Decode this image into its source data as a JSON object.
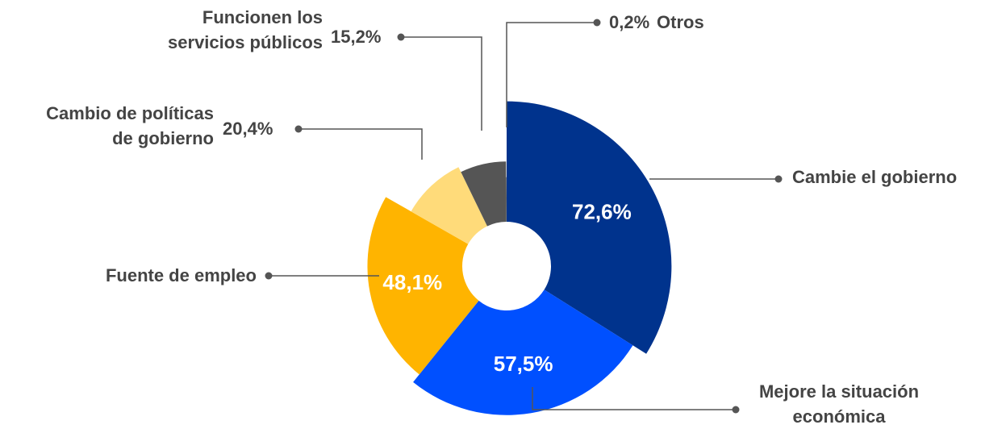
{
  "chart_data": {
    "type": "pie",
    "categories": [
      "Cambie el gobierno",
      "Mejore la situación económica",
      "Fuente de empleo",
      "Cambio de políticas de gobierno",
      "Funcionen los servicios públicos",
      "Otros"
    ],
    "values": [
      72.6,
      57.5,
      48.1,
      20.4,
      15.2,
      0.2
    ],
    "value_labels": [
      "72,6%",
      "57,5%",
      "48,1%",
      "20,4%",
      "15,2%",
      "0,2%"
    ],
    "colors": [
      "#00338d",
      "#0050ff",
      "#ffb400",
      "#ffdb7a",
      "#555555",
      "#777777"
    ]
  }
}
